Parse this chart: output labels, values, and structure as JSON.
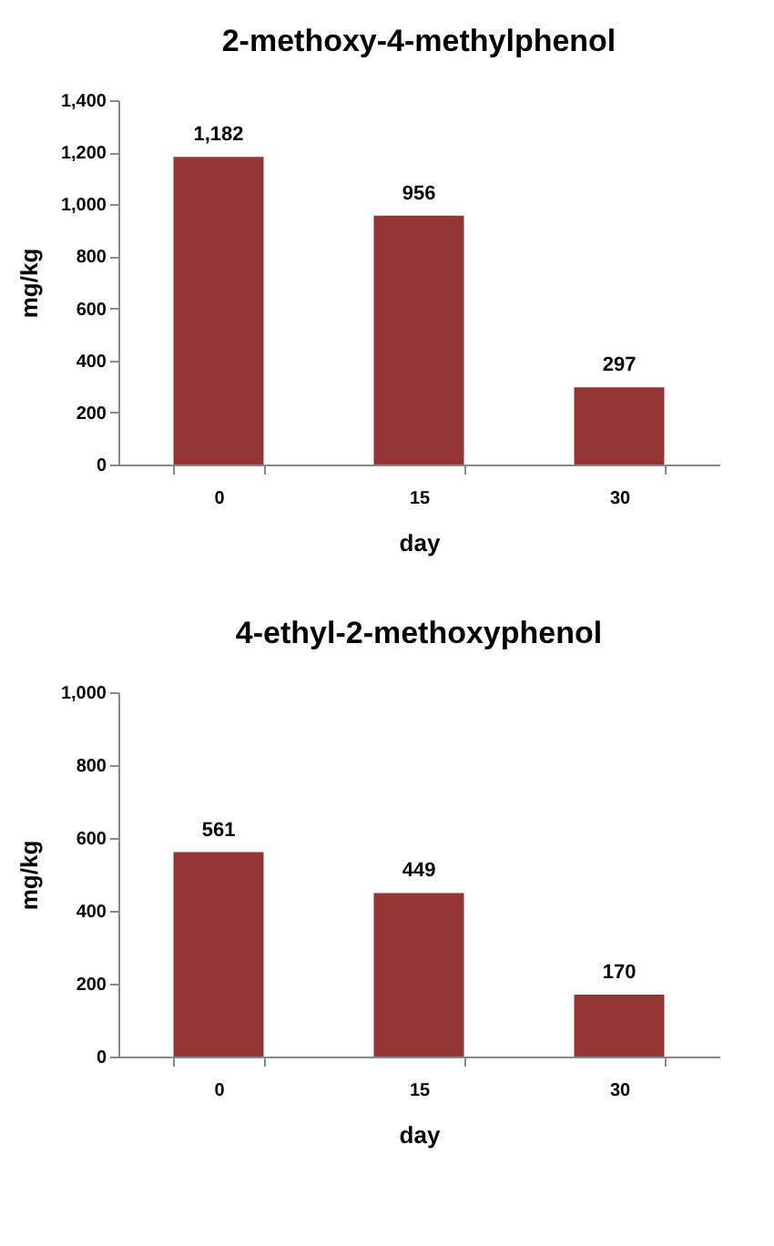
{
  "chart_data": [
    {
      "type": "bar",
      "title": "2-methoxy-4-methylphenol",
      "xlabel": "day",
      "ylabel": "mg/kg",
      "categories": [
        "0",
        "15",
        "30"
      ],
      "values": [
        1182,
        956,
        297
      ],
      "value_labels": [
        "1,182",
        "956",
        "297"
      ],
      "color": "#943634",
      "ylim": [
        0,
        1400
      ],
      "yticks": [
        0,
        200,
        400,
        600,
        800,
        {
          "value": 1000,
          "label": "1,000"
        },
        {
          "value": 1200,
          "label": "1,200"
        },
        {
          "value": 1400,
          "label": "1,400"
        }
      ],
      "grid": false
    },
    {
      "type": "bar",
      "title": "4-ethyl-2-methoxyphenol",
      "xlabel": "day",
      "ylabel": "mg/kg",
      "categories": [
        "0",
        "15",
        "30"
      ],
      "values": [
        561,
        449,
        170
      ],
      "value_labels": [
        "561",
        "449",
        "170"
      ],
      "color": "#943634",
      "ylim": [
        0,
        1000
      ],
      "yticks": [
        0,
        200,
        400,
        600,
        800,
        {
          "value": 1000,
          "label": "1,000"
        }
      ],
      "grid": false
    }
  ]
}
